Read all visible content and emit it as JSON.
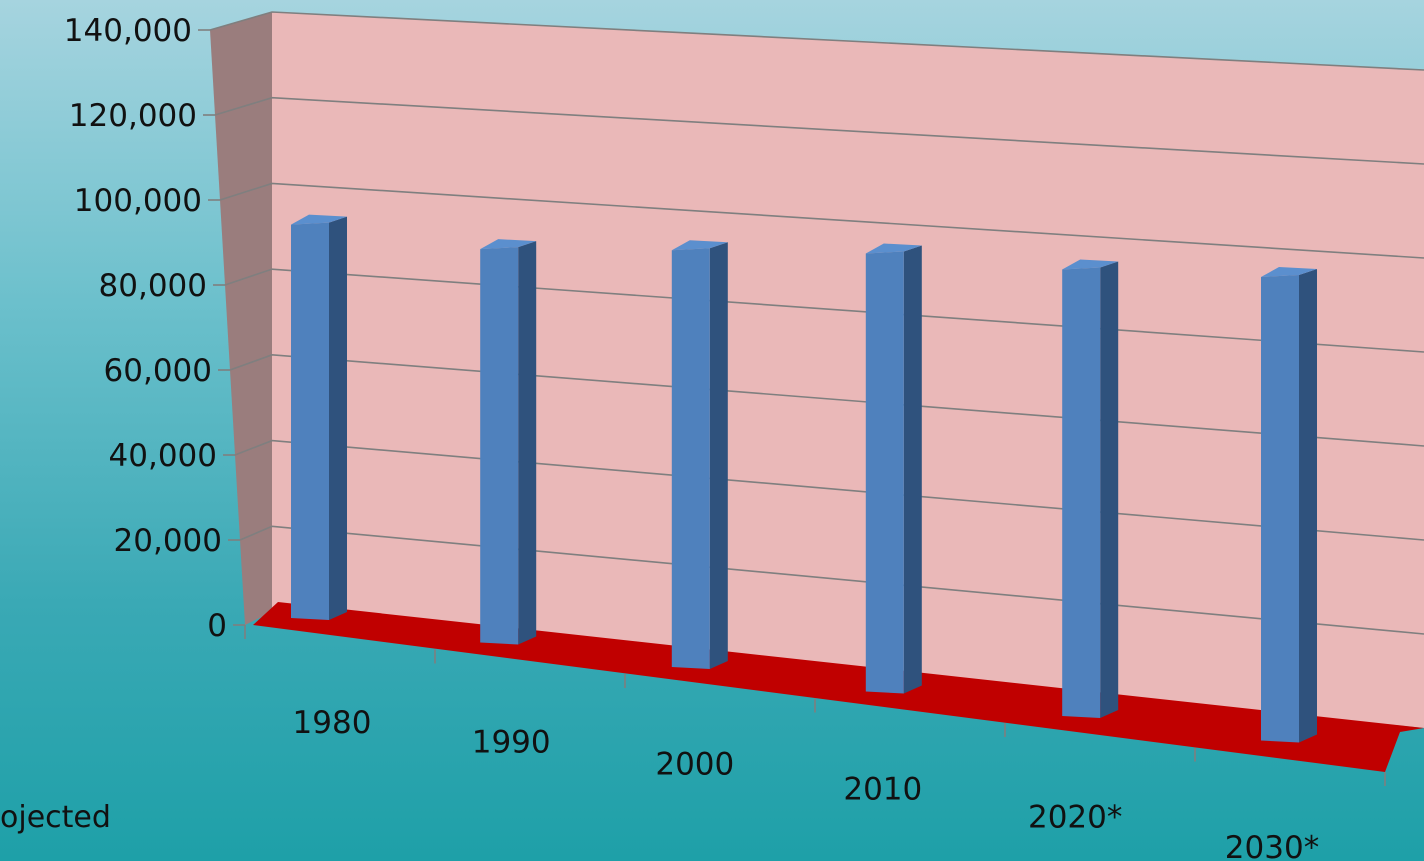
{
  "chart_data": {
    "type": "bar",
    "title": "",
    "xlabel": "",
    "ylabel": "",
    "categories": [
      "1980",
      "1990",
      "2000",
      "2010",
      "2020*",
      "2030*"
    ],
    "values": [
      93500,
      93500,
      99000,
      104000,
      106000,
      110000
    ],
    "ylim": [
      0,
      140000
    ],
    "yticks": [
      "0",
      "20,000",
      "40,000",
      "60,000",
      "80,000",
      "100,000",
      "120,000",
      "140,000"
    ],
    "grid": true,
    "style": "3d",
    "colors": {
      "bar_front": "#4f81bd",
      "bar_side": "#2f527d",
      "back_wall": "#eab8b8",
      "side_wall": "#9a7d7d",
      "floor": "#c00000",
      "gridline": "#7f7f7f"
    }
  },
  "footnote": "ojected"
}
